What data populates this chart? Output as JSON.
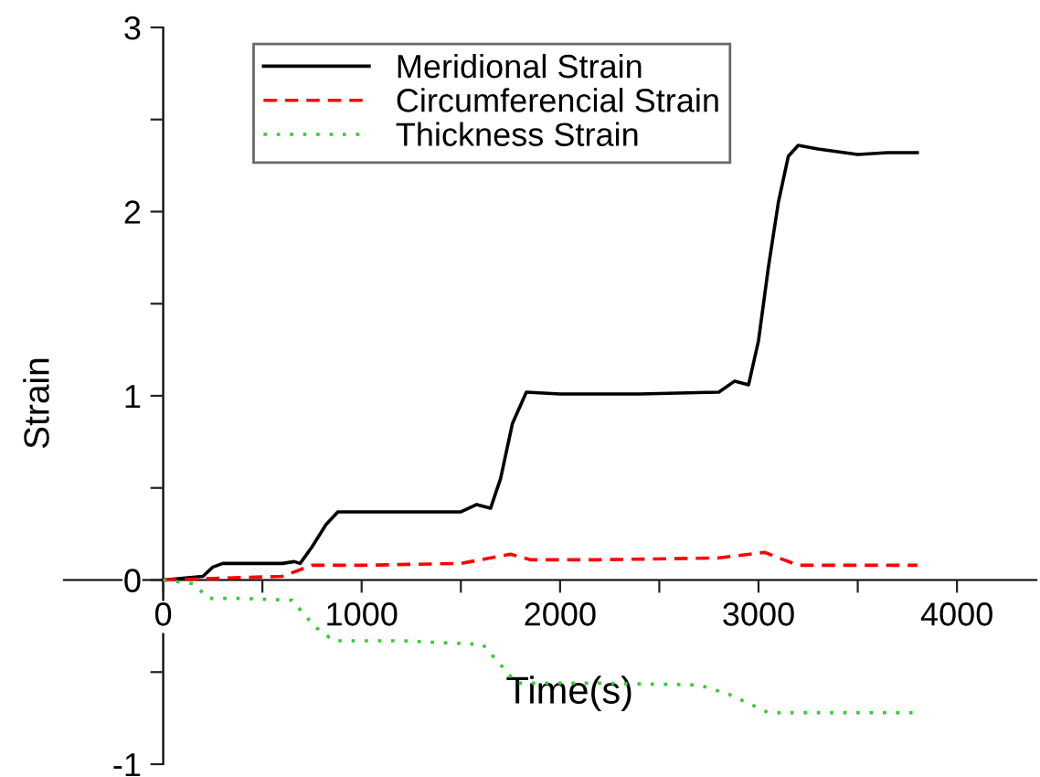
{
  "chart_data": {
    "type": "line",
    "xlabel": "Time(s)",
    "ylabel": "Strain",
    "xlim": [
      -500,
      4400
    ],
    "ylim": [
      -1,
      3
    ],
    "xticks": [
      0,
      {
        "value": 500,
        "label": null
      },
      1000,
      {
        "value": 1500,
        "label": null
      },
      2000,
      {
        "value": 2500,
        "label": null
      },
      3000,
      {
        "value": 3500,
        "label": null
      },
      4000
    ],
    "yticks": [
      -1,
      {
        "value": -0.5,
        "label": null
      },
      0,
      {
        "value": 0.5,
        "label": null
      },
      1,
      {
        "value": 1.5,
        "label": null
      },
      2,
      {
        "value": 2.5,
        "label": null
      },
      3
    ],
    "grid": false,
    "legend": "top",
    "marker": "none",
    "series": [
      {
        "name": "Meridional Strain",
        "color": "#000000",
        "line_style": "solid",
        "x": [
          0,
          100,
          200,
          250,
          300,
          450,
          600,
          660,
          690,
          750,
          820,
          880,
          1000,
          1200,
          1500,
          1580,
          1650,
          1700,
          1760,
          1830,
          2000,
          2400,
          2800,
          2880,
          2950,
          3000,
          3050,
          3100,
          3150,
          3200,
          3300,
          3500,
          3650,
          3800
        ],
        "values": [
          0,
          0.01,
          0.02,
          0.07,
          0.09,
          0.09,
          0.09,
          0.1,
          0.09,
          0.18,
          0.3,
          0.37,
          0.37,
          0.37,
          0.37,
          0.41,
          0.39,
          0.55,
          0.85,
          1.02,
          1.01,
          1.01,
          1.02,
          1.08,
          1.06,
          1.3,
          1.7,
          2.05,
          2.3,
          2.36,
          2.34,
          2.31,
          2.32,
          2.32
        ]
      },
      {
        "name": "Circumferencial Strain",
        "color": "#ff0000",
        "line_style": "dashed",
        "x": [
          0,
          300,
          600,
          750,
          1000,
          1500,
          1750,
          1850,
          2200,
          2800,
          3030,
          3200,
          3500,
          3800
        ],
        "values": [
          0,
          0.01,
          0.02,
          0.08,
          0.08,
          0.09,
          0.14,
          0.11,
          0.11,
          0.12,
          0.15,
          0.08,
          0.08,
          0.08
        ]
      },
      {
        "name": "Thickness Strain",
        "color": "#33cc33",
        "line_style": "dotted",
        "x": [
          0,
          150,
          230,
          400,
          650,
          760,
          860,
          1200,
          1610,
          1700,
          1780,
          2200,
          2700,
          2850,
          3050,
          3400,
          3800
        ],
        "values": [
          0,
          -0.02,
          -0.1,
          -0.1,
          -0.11,
          -0.25,
          -0.33,
          -0.33,
          -0.35,
          -0.46,
          -0.56,
          -0.56,
          -0.57,
          -0.62,
          -0.72,
          -0.72,
          -0.72
        ]
      }
    ]
  }
}
